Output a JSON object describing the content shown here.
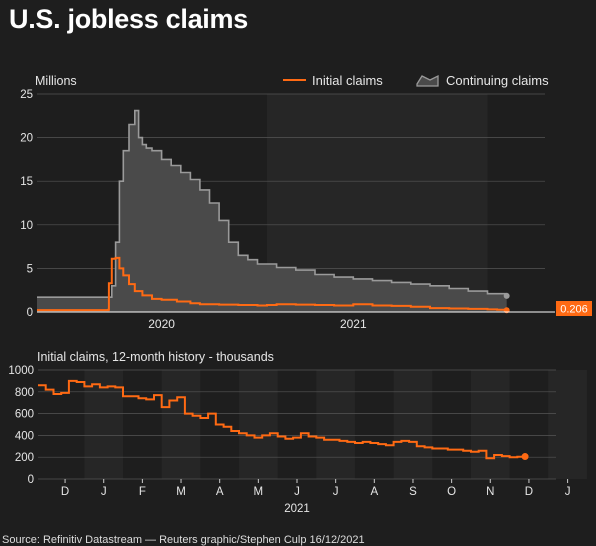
{
  "page": {
    "title": "U.S. jobless claims",
    "source": "Source: Refinitiv Datastream — Reuters graphic/Stephen Culp 16/12/2021"
  },
  "colors": {
    "background": "#1e1e1e",
    "band": "#262626",
    "initial": "#ff6a13",
    "continuing_fill": "#4a4a4a",
    "continuing_line": "#9a9a9a",
    "grid": "#555555"
  },
  "chart_data": [
    {
      "type": "area",
      "title": "",
      "ylabel": "Millions",
      "ylim": [
        0,
        25
      ],
      "yticks": [
        0,
        5,
        10,
        15,
        20,
        25
      ],
      "xlim": [
        2019.35,
        2022.0
      ],
      "xticks": [
        {
          "value": 2020.0,
          "label": "2020"
        },
        {
          "value": 2021.0,
          "label": "2021"
        }
      ],
      "legend_position": "top-right",
      "grid": true,
      "last_value_label": "0.206",
      "series": [
        {
          "name": "Initial claims",
          "style": "line",
          "color": "#ff6a13",
          "x": [
            2019.35,
            2019.58,
            2019.72,
            2019.725,
            2019.74,
            2019.76,
            2019.78,
            2019.8,
            2019.83,
            2019.86,
            2019.9,
            2019.95,
            2020.0,
            2020.08,
            2020.15,
            2020.2,
            2020.3,
            2020.4,
            2020.5,
            2020.55,
            2020.6,
            2020.7,
            2020.8,
            2020.9,
            2021.0,
            2021.1,
            2021.2,
            2021.3,
            2021.4,
            2021.5,
            2021.6,
            2021.7,
            2021.75,
            2021.8
          ],
          "y": [
            0.22,
            0.22,
            0.24,
            3.3,
            6.1,
            6.2,
            5.0,
            4.2,
            3.2,
            2.4,
            1.9,
            1.5,
            1.4,
            1.2,
            1.0,
            0.9,
            0.85,
            0.8,
            0.75,
            0.8,
            0.9,
            0.85,
            0.8,
            0.75,
            0.9,
            0.75,
            0.7,
            0.6,
            0.45,
            0.4,
            0.35,
            0.3,
            0.25,
            0.206
          ]
        },
        {
          "name": "Continuing claims",
          "style": "area",
          "color": "#9a9a9a",
          "x": [
            2019.35,
            2019.72,
            2019.74,
            2019.76,
            2019.78,
            2019.8,
            2019.83,
            2019.86,
            2019.88,
            2019.9,
            2019.92,
            2019.95,
            2020.0,
            2020.05,
            2020.1,
            2020.15,
            2020.2,
            2020.25,
            2020.3,
            2020.35,
            2020.4,
            2020.45,
            2020.5,
            2020.6,
            2020.7,
            2020.8,
            2020.9,
            2021.0,
            2021.1,
            2021.2,
            2021.3,
            2021.4,
            2021.5,
            2021.6,
            2021.7,
            2021.8
          ],
          "y": [
            1.7,
            1.7,
            3.0,
            8.0,
            15.0,
            18.5,
            21.5,
            23.1,
            20.0,
            19.2,
            18.8,
            18.5,
            17.5,
            16.8,
            16.0,
            15.2,
            14.0,
            12.5,
            10.5,
            8.0,
            6.5,
            6.0,
            5.5,
            5.1,
            4.8,
            4.3,
            4.0,
            3.8,
            3.6,
            3.4,
            3.2,
            3.0,
            2.7,
            2.4,
            2.1,
            1.85
          ]
        }
      ]
    },
    {
      "type": "line",
      "title": "Initial claims, 12-month history - thousands",
      "ylim": [
        0,
        1000
      ],
      "yticks": [
        0,
        200,
        400,
        600,
        800,
        1000
      ],
      "xlim": [
        -0.7,
        12.7
      ],
      "months": [
        "D",
        "J",
        "F",
        "M",
        "A",
        "M",
        "J",
        "J",
        "A",
        "S",
        "O",
        "N",
        "D",
        "J"
      ],
      "year_label": "2021",
      "grid": true,
      "series": [
        {
          "name": "Initial claims",
          "color": "#ff6a13",
          "x": [
            -0.7,
            -0.5,
            -0.3,
            -0.1,
            0.1,
            0.3,
            0.5,
            0.7,
            0.9,
            1.1,
            1.3,
            1.5,
            1.7,
            1.9,
            2.1,
            2.3,
            2.5,
            2.7,
            2.9,
            3.1,
            3.3,
            3.5,
            3.7,
            3.9,
            4.1,
            4.3,
            4.5,
            4.7,
            4.9,
            5.1,
            5.3,
            5.5,
            5.7,
            5.9,
            6.1,
            6.3,
            6.5,
            6.7,
            6.9,
            7.1,
            7.3,
            7.5,
            7.7,
            7.9,
            8.1,
            8.3,
            8.5,
            8.7,
            8.9,
            9.1,
            9.3,
            9.5,
            9.7,
            9.9,
            10.1,
            10.3,
            10.5,
            10.7,
            10.9,
            11.1,
            11.3,
            11.5,
            11.7,
            11.9
          ],
          "y": [
            860,
            820,
            780,
            790,
            900,
            890,
            850,
            870,
            840,
            850,
            840,
            760,
            760,
            740,
            730,
            770,
            660,
            720,
            750,
            600,
            580,
            560,
            600,
            500,
            480,
            440,
            420,
            400,
            380,
            400,
            420,
            390,
            370,
            380,
            420,
            390,
            380,
            360,
            360,
            350,
            340,
            330,
            340,
            330,
            320,
            310,
            340,
            350,
            340,
            300,
            290,
            280,
            280,
            270,
            270,
            260,
            250,
            260,
            190,
            220,
            210,
            200,
            205,
            206
          ]
        }
      ]
    }
  ]
}
